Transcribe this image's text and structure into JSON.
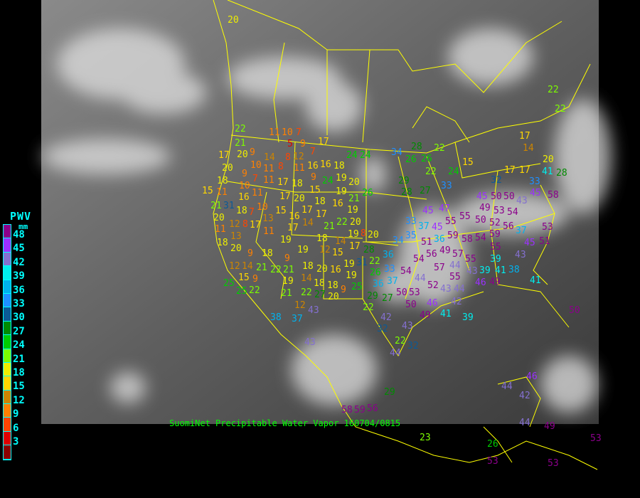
{
  "caption": {
    "source": "SuomiNet Precipitable Water Vapor",
    "timestamp": "160704/0815"
  },
  "legend": {
    "title": "PWV",
    "unit": "mm",
    "ticks": [
      "48",
      "45",
      "42",
      "39",
      "36",
      "33",
      "30",
      "27",
      "24",
      "21",
      "18",
      "15",
      "12",
      "9",
      "6",
      "3"
    ],
    "colors": [
      "#8b008b",
      "#9b30ff",
      "#8470d0",
      "#00eeee",
      "#00b2ee",
      "#1e90ff",
      "#0b5a96",
      "#008b00",
      "#00cd00",
      "#7cfc00",
      "#eeee00",
      "#ffd700",
      "#cd8500",
      "#ff8000",
      "#ff4500",
      "#dd0000",
      "#8b0000"
    ]
  },
  "map": {
    "border_color": "#ffff00",
    "background": "infrared satellite imagery"
  },
  "stations": [
    20,
    22,
    21,
    20,
    11,
    10,
    7,
    5,
    9,
    12,
    8,
    7,
    9,
    10,
    14,
    11,
    9,
    7,
    11,
    8,
    20,
    17,
    10,
    11,
    16,
    16,
    18,
    9,
    19,
    17,
    24,
    24,
    18,
    16,
    11,
    15,
    31,
    11,
    17,
    18,
    15,
    24,
    20,
    19,
    21,
    26,
    21,
    20,
    18,
    7,
    10,
    13,
    15,
    17,
    20,
    17,
    18,
    16,
    16,
    19,
    20,
    11,
    12,
    8,
    13,
    17,
    17,
    14,
    17,
    21,
    22,
    19,
    14,
    18,
    12,
    17,
    8,
    20,
    11,
    19,
    15,
    18,
    20,
    9,
    18,
    12,
    14,
    21,
    22,
    21,
    9,
    15,
    19,
    18,
    9,
    19,
    14,
    20,
    18,
    16,
    22,
    21,
    12,
    27,
    19,
    19,
    25,
    18,
    9,
    20,
    28,
    22,
    36,
    31,
    26,
    33,
    36,
    29,
    22,
    25,
    25,
    22,
    27,
    42,
    32,
    44,
    22,
    32,
    28,
    34,
    26,
    26,
    22,
    22,
    24,
    29,
    28,
    27,
    33,
    45,
    47,
    33,
    37,
    45,
    55,
    55,
    36,
    35,
    34,
    51,
    59,
    49,
    58,
    54,
    56,
    57,
    54,
    57,
    55,
    45,
    49,
    50,
    50,
    50,
    53,
    52,
    59,
    56,
    55,
    54,
    15,
    32,
    17,
    17,
    33,
    41,
    45,
    43,
    22,
    22,
    17,
    14,
    20,
    28,
    58,
    37,
    53,
    45,
    51,
    43,
    39,
    39,
    43,
    41,
    38,
    44,
    55,
    46,
    49,
    41,
    37,
    54,
    44,
    52,
    53,
    50,
    46,
    43,
    44,
    42,
    39,
    41,
    50,
    43,
    49,
    37,
    38,
    43,
    43,
    44,
    42,
    46,
    50,
    58,
    59,
    56,
    29,
    23,
    26,
    53,
    53,
    53,
    44,
    49
  ]
}
